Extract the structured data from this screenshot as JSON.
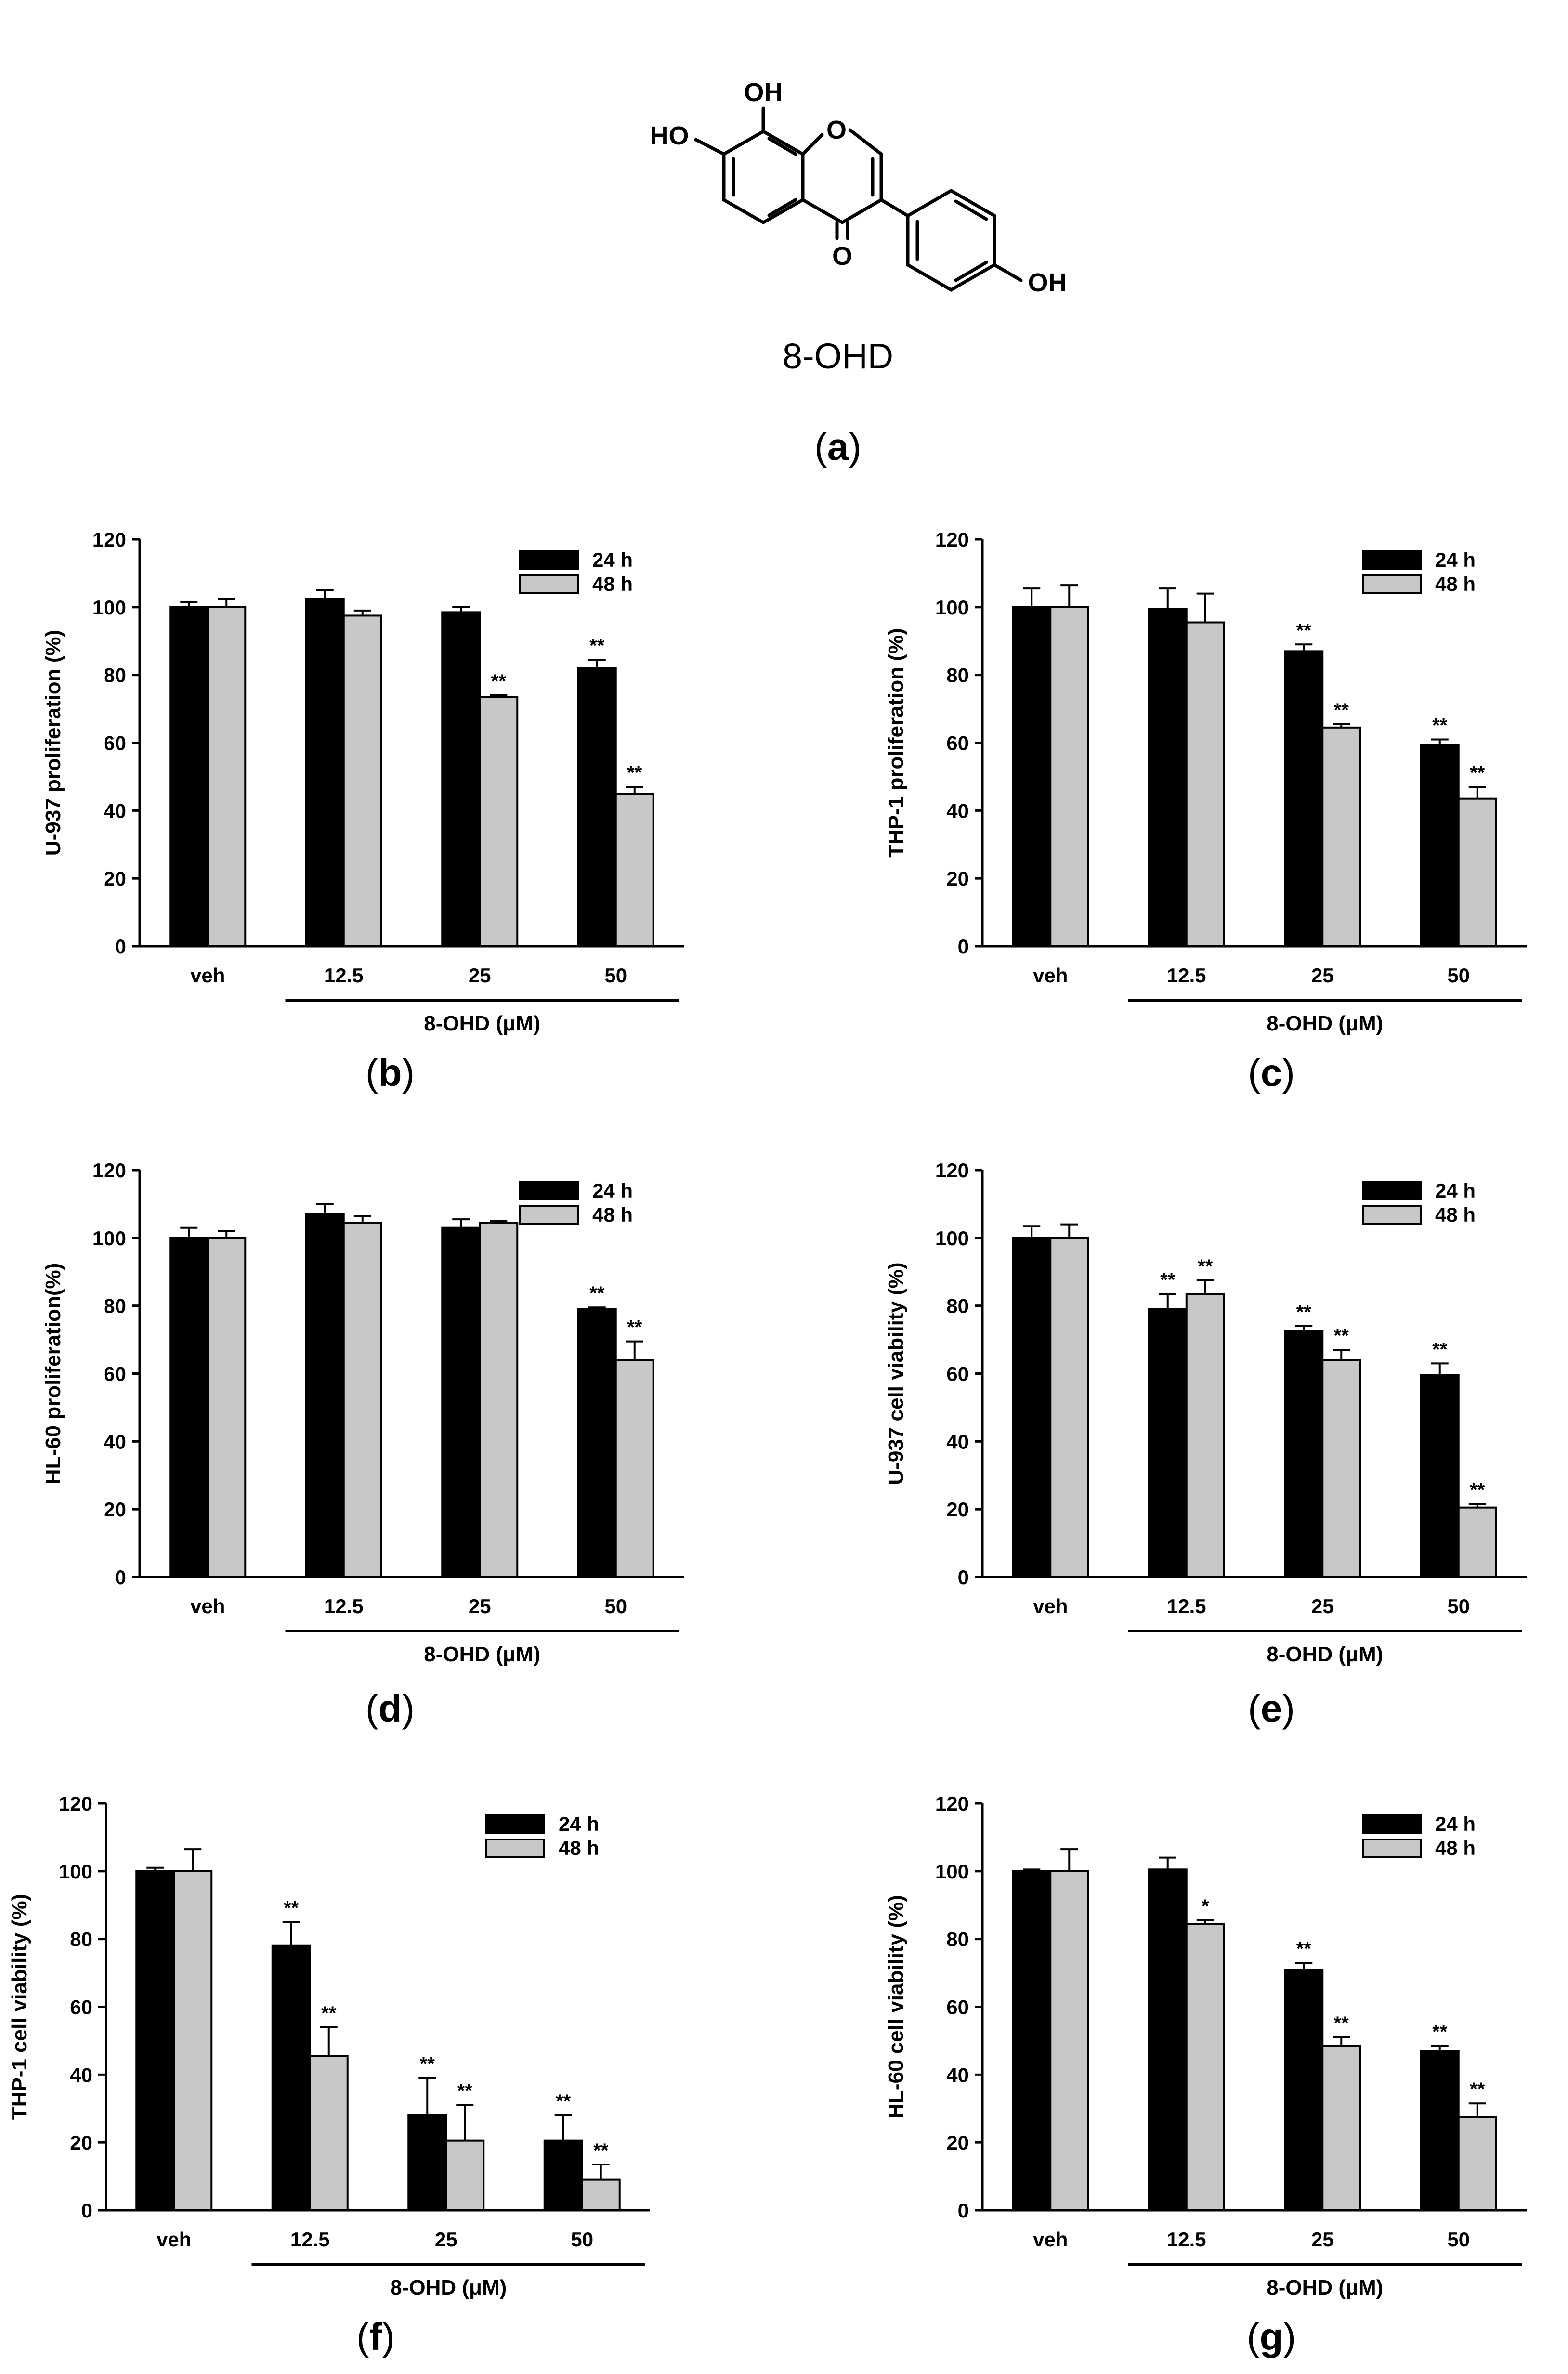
{
  "structure": {
    "compound_name": "8-OHD",
    "atom_labels": {
      "oh_top": "OH",
      "ho_left": "HO",
      "ring_o": "O",
      "carbonyl_o": "O",
      "oh_right": "OH"
    },
    "caption_letter": "a"
  },
  "chart_data": [
    {
      "panel": "b",
      "type": "bar",
      "title": "",
      "ylabel": "U-937 proliferation (%)",
      "xlabel": "8-OHD (μM)",
      "ylim": [
        0,
        120
      ],
      "yticks": [
        0,
        20,
        40,
        60,
        80,
        100,
        120
      ],
      "categories": [
        "veh",
        "12.5",
        "25",
        "50"
      ],
      "legend_position": "top-right",
      "series": [
        {
          "name": "24 h",
          "color": "#000000",
          "values": [
            100,
            102.5,
            98.5,
            82
          ],
          "errors": [
            1.5,
            2.5,
            1.5,
            2.5
          ],
          "sig": [
            "",
            "",
            "",
            "**"
          ]
        },
        {
          "name": "48 h",
          "color": "#c8c8c8",
          "values": [
            100,
            97.5,
            73.5,
            45
          ],
          "errors": [
            2.5,
            1.5,
            0.5,
            2
          ],
          "sig": [
            "",
            "",
            "**",
            "**"
          ]
        }
      ]
    },
    {
      "panel": "c",
      "type": "bar",
      "title": "",
      "ylabel": "THP-1 proliferation (%)",
      "xlabel": "8-OHD (μM)",
      "ylim": [
        0,
        120
      ],
      "yticks": [
        0,
        20,
        40,
        60,
        80,
        100,
        120
      ],
      "categories": [
        "veh",
        "12.5",
        "25",
        "50"
      ],
      "legend_position": "top-right",
      "series": [
        {
          "name": "24 h",
          "color": "#000000",
          "values": [
            100,
            99.5,
            87,
            59.5
          ],
          "errors": [
            5.5,
            6,
            2,
            1.5
          ],
          "sig": [
            "",
            "",
            "**",
            "**"
          ]
        },
        {
          "name": "48 h",
          "color": "#c8c8c8",
          "values": [
            100,
            95.5,
            64.5,
            43.5
          ],
          "errors": [
            6.5,
            8.5,
            1,
            3.5
          ],
          "sig": [
            "",
            "",
            "**",
            "**"
          ]
        }
      ]
    },
    {
      "panel": "d",
      "type": "bar",
      "title": "",
      "ylabel": "HL-60 proliferation(%)",
      "xlabel": "8-OHD (μM)",
      "ylim": [
        0,
        120
      ],
      "yticks": [
        0,
        20,
        40,
        60,
        80,
        100,
        120
      ],
      "categories": [
        "veh",
        "12.5",
        "25",
        "50"
      ],
      "legend_position": "top-right",
      "series": [
        {
          "name": "24 h",
          "color": "#000000",
          "values": [
            100,
            107,
            103,
            79
          ],
          "errors": [
            3,
            3,
            2.5,
            0.5
          ],
          "sig": [
            "",
            "",
            "",
            "**"
          ]
        },
        {
          "name": "48 h",
          "color": "#c8c8c8",
          "values": [
            100,
            104.5,
            104.5,
            64
          ],
          "errors": [
            2,
            2,
            0.5,
            5.5
          ],
          "sig": [
            "",
            "",
            "",
            "**"
          ]
        }
      ]
    },
    {
      "panel": "e",
      "type": "bar",
      "title": "",
      "ylabel": "U-937 cell viability (%)",
      "xlabel": "8-OHD (μM)",
      "ylim": [
        0,
        120
      ],
      "yticks": [
        0,
        20,
        40,
        60,
        80,
        100,
        120
      ],
      "categories": [
        "veh",
        "12.5",
        "25",
        "50"
      ],
      "legend_position": "top-right",
      "series": [
        {
          "name": "24 h",
          "color": "#000000",
          "values": [
            100,
            79,
            72.5,
            59.5
          ],
          "errors": [
            3.5,
            4.5,
            1.5,
            3.5
          ],
          "sig": [
            "",
            "**",
            "**",
            "**"
          ]
        },
        {
          "name": "48 h",
          "color": "#c8c8c8",
          "values": [
            100,
            83.5,
            64,
            20.5
          ],
          "errors": [
            4,
            4,
            3,
            1
          ],
          "sig": [
            "",
            "**",
            "**",
            "**"
          ]
        }
      ]
    },
    {
      "panel": "f",
      "type": "bar",
      "title": "",
      "ylabel": "THP-1 cell viability (%)",
      "xlabel": "8-OHD (μM)",
      "ylim": [
        0,
        120
      ],
      "yticks": [
        0,
        20,
        40,
        60,
        80,
        100,
        120
      ],
      "categories": [
        "veh",
        "12.5",
        "25",
        "50"
      ],
      "legend_position": "top-right",
      "series": [
        {
          "name": "24 h",
          "color": "#000000",
          "values": [
            100,
            78,
            28,
            20.5
          ],
          "errors": [
            1,
            7,
            11,
            7.5
          ],
          "sig": [
            "",
            "**",
            "**",
            "**"
          ]
        },
        {
          "name": "48 h",
          "color": "#c8c8c8",
          "values": [
            100,
            45.5,
            20.5,
            9
          ],
          "errors": [
            6.5,
            8.5,
            10.5,
            4.5
          ],
          "sig": [
            "",
            "**",
            "**",
            "**"
          ]
        }
      ]
    },
    {
      "panel": "g",
      "type": "bar",
      "title": "",
      "ylabel": "HL-60 cell viability (%)",
      "xlabel": "8-OHD (μM)",
      "ylim": [
        0,
        120
      ],
      "yticks": [
        0,
        20,
        40,
        60,
        80,
        100,
        120
      ],
      "categories": [
        "veh",
        "12.5",
        "25",
        "50"
      ],
      "legend_position": "top-right",
      "series": [
        {
          "name": "24 h",
          "color": "#000000",
          "values": [
            100,
            100.5,
            71,
            47
          ],
          "errors": [
            0.5,
            3.5,
            2,
            1.5
          ],
          "sig": [
            "",
            "",
            "**",
            "**"
          ]
        },
        {
          "name": "48 h",
          "color": "#c8c8c8",
          "values": [
            100,
            84.5,
            48.5,
            27.5
          ],
          "errors": [
            6.5,
            1,
            2.5,
            4
          ],
          "sig": [
            "",
            "*",
            "**",
            "**"
          ]
        }
      ]
    }
  ]
}
